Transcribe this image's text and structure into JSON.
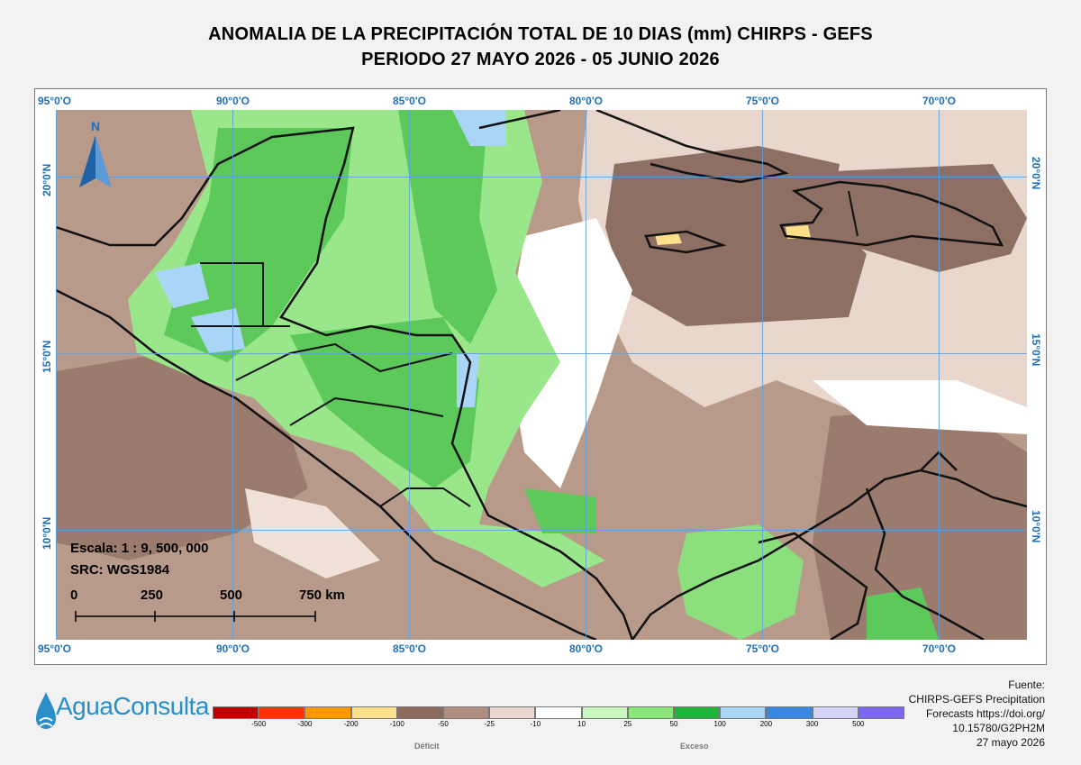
{
  "header": {
    "title_line1": "ANOMALIA DE LA PRECIPITACIÓN TOTAL DE 10 DIAS (mm) CHIRPS - GEFS",
    "title_line2": "PERIODO 27 MAYO 2026 - 05 JUNIO 2026"
  },
  "map": {
    "north_arrow_label": "N",
    "lon_labels": [
      "95°0'O",
      "90°0'O",
      "85°0'O",
      "80°0'O",
      "75°0'O",
      "70°0'O"
    ],
    "lat_labels": [
      "20°0'N",
      "15°0'N",
      "10°0'N"
    ],
    "scale": {
      "ratio": "Escala: 1 : 9, 500, 000",
      "src": "SRC: WGS1984",
      "ticks": [
        "0",
        "250",
        "500",
        "750 km"
      ]
    }
  },
  "legend": {
    "ticks": [
      "-500",
      "-300",
      "-200",
      "-100",
      "-50",
      "-25",
      "-10",
      "10",
      "25",
      "50",
      "100",
      "200",
      "300",
      "500"
    ],
    "colors": [
      "#c00000",
      "#ff3300",
      "#ff9900",
      "#ffe08a",
      "#8b6b5e",
      "#b08d80",
      "#ead7cd",
      "#ffffff",
      "#c8f7c0",
      "#8ae87a",
      "#22b33a",
      "#a9d5f7",
      "#3a87e0",
      "#d4d4f7",
      "#7b68ee"
    ],
    "deficit_label": "Déficit",
    "excess_label": "Exceso"
  },
  "logo": {
    "name": "AguaConsulta",
    "icon": "water-drop-icon"
  },
  "source": {
    "lines": [
      "Fuente:",
      "CHIRPS-GEFS Precipitation",
      "Forecasts https://doi.org/",
      "10.15780/G2PH2M",
      "27 mayo 2026"
    ]
  }
}
